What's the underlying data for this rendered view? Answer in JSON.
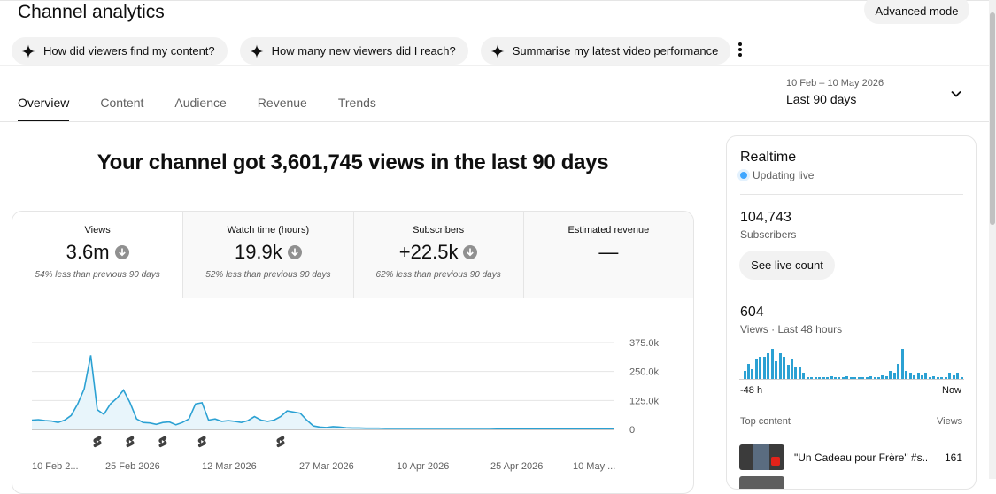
{
  "header": {
    "title": "Channel analytics",
    "advanced_mode_label": "Advanced mode"
  },
  "ai_chips": [
    {
      "label": "How did viewers find my content?"
    },
    {
      "label": "How many new viewers did I reach?"
    },
    {
      "label": "Summarise my latest video performance"
    }
  ],
  "tabs": [
    {
      "label": "Overview",
      "active": true
    },
    {
      "label": "Content",
      "active": false
    },
    {
      "label": "Audience",
      "active": false
    },
    {
      "label": "Revenue",
      "active": false
    },
    {
      "label": "Trends",
      "active": false
    }
  ],
  "date_range": {
    "range": "10 Feb – 10 May 2026",
    "label": "Last 90 days"
  },
  "headline": "Your channel got 3,601,745 views in the last 90 days",
  "metrics": [
    {
      "label": "Views",
      "value": "3.6m",
      "trend": "down",
      "comparison": "54% less than previous 90 days"
    },
    {
      "label": "Watch time (hours)",
      "value": "19.9k",
      "trend": "down",
      "comparison": "52% less than previous 90 days"
    },
    {
      "label": "Subscribers",
      "value": "+22.5k",
      "trend": "down",
      "comparison": "62% less than previous 90 days"
    },
    {
      "label": "Estimated revenue",
      "value": "—",
      "trend": "none",
      "comparison": ""
    }
  ],
  "chart_data": {
    "type": "area",
    "title": "",
    "xlabel": "",
    "ylabel": "",
    "x_tick_labels": [
      "10 Feb 2...",
      "25 Feb 2026",
      "12 Mar 2026",
      "27 Mar 2026",
      "10 Apr 2026",
      "25 Apr 2026",
      "10 May ..."
    ],
    "y_tick_labels": [
      "375.0k",
      "250.0k",
      "125.0k",
      "0"
    ],
    "ylim": [
      0,
      375000
    ],
    "grid": true,
    "series": [
      {
        "values": [
          40000,
          42000,
          38000,
          36000,
          30000,
          40000,
          60000,
          110000,
          175000,
          320000,
          85000,
          65000,
          110000,
          135000,
          170000,
          115000,
          45000,
          30000,
          28000,
          22000,
          30000,
          32000,
          20000,
          30000,
          45000,
          110000,
          115000,
          40000,
          45000,
          35000,
          38000,
          35000,
          30000,
          38000,
          55000,
          40000,
          35000,
          40000,
          55000,
          80000,
          75000,
          70000,
          40000,
          15000,
          10000,
          8000,
          12000,
          10000,
          7000,
          6000,
          6000,
          5000,
          5000,
          5000,
          4000,
          4000,
          4000,
          4000,
          4000,
          4000,
          4000,
          4000,
          4000,
          4000,
          4000,
          4000,
          4000,
          4000,
          4000,
          4000,
          4000,
          3000,
          3000,
          3000,
          3000,
          3000,
          3000,
          3000,
          3000,
          3000,
          3000,
          3000,
          3000,
          3000,
          3000,
          3000,
          3000,
          3000,
          3000,
          3000
        ]
      }
    ],
    "color": "#2ba1d3",
    "fill_color": "#e8f5fb",
    "shorts_markers_day_index": [
      10,
      15,
      20,
      26,
      38
    ]
  },
  "realtime": {
    "title": "Realtime",
    "status": "Updating live",
    "subscribers_value": "104,743",
    "subscribers_label": "Subscribers",
    "live_count_label": "See live count",
    "views_value": "604",
    "views_label": "Views · Last 48 hours",
    "bar_values": [
      0,
      8,
      15,
      10,
      20,
      22,
      22,
      26,
      30,
      18,
      26,
      22,
      14,
      20,
      12,
      12,
      6,
      2,
      2,
      2,
      2,
      2,
      2,
      3,
      2,
      2,
      2,
      3,
      2,
      2,
      2,
      2,
      2,
      3,
      2,
      2,
      4,
      3,
      8,
      6,
      15,
      30,
      8,
      6,
      4,
      6,
      4,
      6,
      2,
      3,
      2,
      2,
      2,
      6,
      4,
      6,
      2
    ],
    "bars_left_label": "-48 h",
    "bars_right_label": "Now",
    "top_content_label": "Top content",
    "views_column_label": "Views",
    "top_videos": [
      {
        "title": "\"Un Cadeau pour Frère\" #s...",
        "views": "161"
      }
    ]
  },
  "colors": {
    "accent": "#2ba1d3",
    "chip_bg": "#f2f2f2",
    "text_secondary": "#606060"
  }
}
